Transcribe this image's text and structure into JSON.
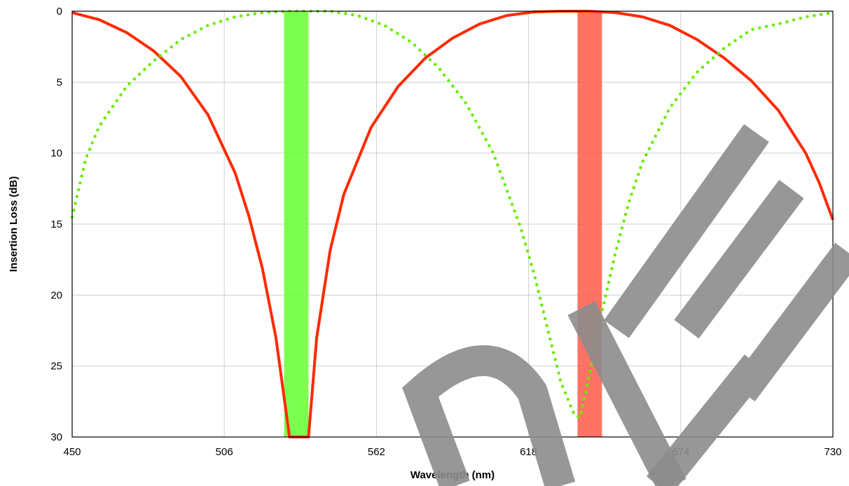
{
  "chart_data": {
    "type": "line",
    "title": "",
    "xlabel": "Wavelength (nm)",
    "ylabel": "Insertion Loss (dB)",
    "xlim": [
      450,
      730
    ],
    "ylim": [
      0,
      30
    ],
    "y_inverted": true,
    "grid": true,
    "x_ticks": [
      450,
      506,
      562,
      618,
      674,
      730
    ],
    "y_ticks": [
      0,
      5,
      10,
      15,
      20,
      25,
      30
    ],
    "x_tick_labels": [
      "450",
      "506",
      "562",
      "618",
      "674",
      "730"
    ],
    "y_tick_labels": [
      "0",
      "5",
      "10",
      "15",
      "20",
      "25",
      "30"
    ],
    "bands": [
      {
        "x_start": 528,
        "x_end": 537,
        "color": "#66ff33"
      },
      {
        "x_start": 636,
        "x_end": 645,
        "color": "#ff5a4a"
      }
    ],
    "series": [
      {
        "color": "#ff2a00",
        "style": "solid",
        "x": [
          450,
          460,
          470,
          480,
          490,
          500,
          510,
          515,
          520,
          525,
          530,
          533,
          535,
          537,
          540,
          545,
          550,
          560,
          570,
          580,
          590,
          600,
          610,
          620,
          630,
          640,
          650,
          660,
          670,
          680,
          690,
          700,
          710,
          720,
          725,
          730
        ],
        "y": [
          0.1,
          0.6,
          1.5,
          2.8,
          4.6,
          7.3,
          11.4,
          14.4,
          18.1,
          23.0,
          30.0,
          30.0,
          30.0,
          30.0,
          23.0,
          16.8,
          12.9,
          8.2,
          5.3,
          3.3,
          1.9,
          0.9,
          0.3,
          0.05,
          0.0,
          0.0,
          0.1,
          0.4,
          1.0,
          2.0,
          3.3,
          4.9,
          7.0,
          10.0,
          12.1,
          14.7
        ]
      },
      {
        "color": "#66ee00",
        "style": "dotted",
        "x": [
          450,
          455,
          460,
          470,
          480,
          490,
          500,
          510,
          520,
          530,
          537,
          545,
          555,
          565,
          575,
          585,
          595,
          605,
          615,
          620,
          625,
          630,
          635,
          637,
          640,
          645,
          650,
          655,
          660,
          670,
          680,
          690,
          700,
          710,
          720,
          730
        ],
        "y": [
          14.5,
          10.4,
          8.1,
          5.3,
          3.5,
          2.0,
          1.0,
          0.4,
          0.1,
          0.0,
          0.0,
          0.0,
          0.3,
          1.0,
          2.2,
          4.0,
          6.5,
          10.0,
          15.2,
          18.5,
          22.4,
          26.2,
          28.5,
          28.6,
          26.0,
          21.2,
          17.0,
          13.4,
          10.6,
          6.8,
          4.3,
          2.6,
          1.3,
          0.9,
          0.4,
          0.1
        ]
      }
    ]
  }
}
